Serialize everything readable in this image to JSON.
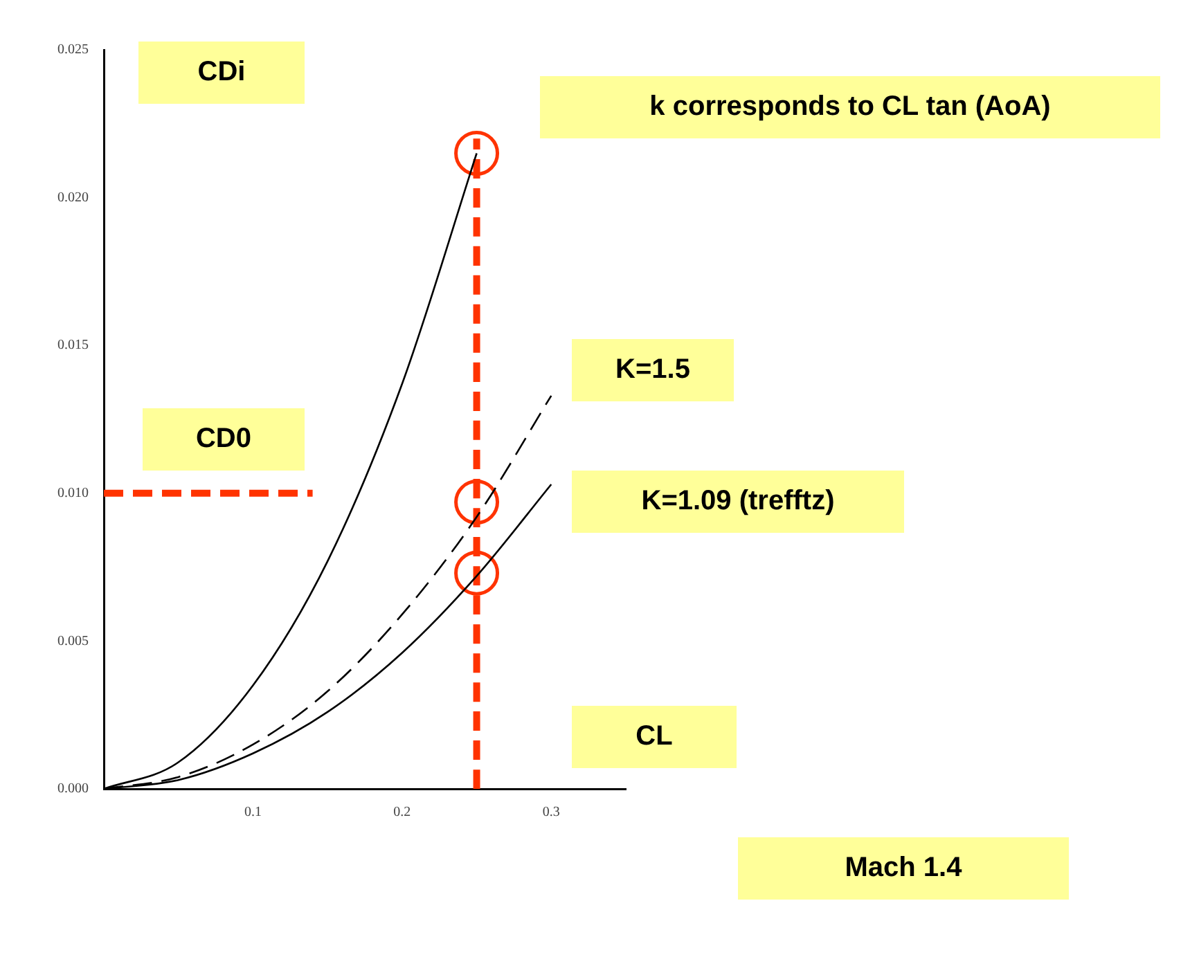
{
  "chart_data": {
    "type": "line",
    "xlabel": "CL",
    "ylabel": "CDi",
    "annotations": [
      "k corresponds to CL tan (AoA)",
      "K=1.5",
      "CD0",
      "K=1.09 (trefftz)",
      "Mach 1.4"
    ],
    "xlim": [
      0,
      0.35
    ],
    "ylim": [
      0,
      0.025
    ],
    "xticks": [
      0.1,
      0.2,
      0.3
    ],
    "yticks": [
      {
        "value": 0,
        "label": "0.000"
      },
      {
        "value": 0.005,
        "label": "0.005"
      },
      {
        "value": 0.01,
        "label": "0.010"
      },
      {
        "value": 0.015,
        "label": "0.015"
      },
      {
        "value": 0.02,
        "label": "0.020"
      },
      {
        "value": 0.025,
        "label": "0.025"
      }
    ],
    "grid": false,
    "legend": false,
    "series": [
      {
        "color": "#000000",
        "line_style": "solid",
        "marker": "none",
        "x": [
          0,
          0.05,
          0.1,
          0.15,
          0.2,
          0.25
        ],
        "values": [
          0,
          0.0009,
          0.0035,
          0.0077,
          0.0137,
          0.0215
        ]
      },
      {
        "color": "#000000",
        "line_style": "dashed",
        "marker": "none",
        "x": [
          0,
          0.05,
          0.1,
          0.15,
          0.2,
          0.25,
          0.3
        ],
        "values": [
          0,
          0.0004,
          0.0015,
          0.0033,
          0.0059,
          0.0092,
          0.0133
        ]
      },
      {
        "color": "#000000",
        "line_style": "solid",
        "marker": "none",
        "x": [
          0,
          0.05,
          0.1,
          0.15,
          0.2,
          0.25,
          0.3
        ],
        "values": [
          0,
          0.0003,
          0.0012,
          0.0026,
          0.0046,
          0.0072,
          0.0103
        ]
      },
      {
        "type": "line",
        "color": "#ff3300",
        "line_style": "dashed",
        "marker": "none",
        "x": [
          0,
          0.14
        ],
        "values": [
          0.01,
          0.01
        ]
      },
      {
        "type": "line",
        "color": "#ff3300",
        "line_style": "dashed",
        "marker": "none",
        "x": [
          0.25,
          0.25
        ],
        "values": [
          0,
          0.022
        ]
      },
      {
        "type": "scatter",
        "color": "#ff3300",
        "marker": "circle",
        "x": [
          0.25,
          0.25,
          0.25
        ],
        "values": [
          0.0215,
          0.0097,
          0.0073
        ]
      }
    ]
  }
}
